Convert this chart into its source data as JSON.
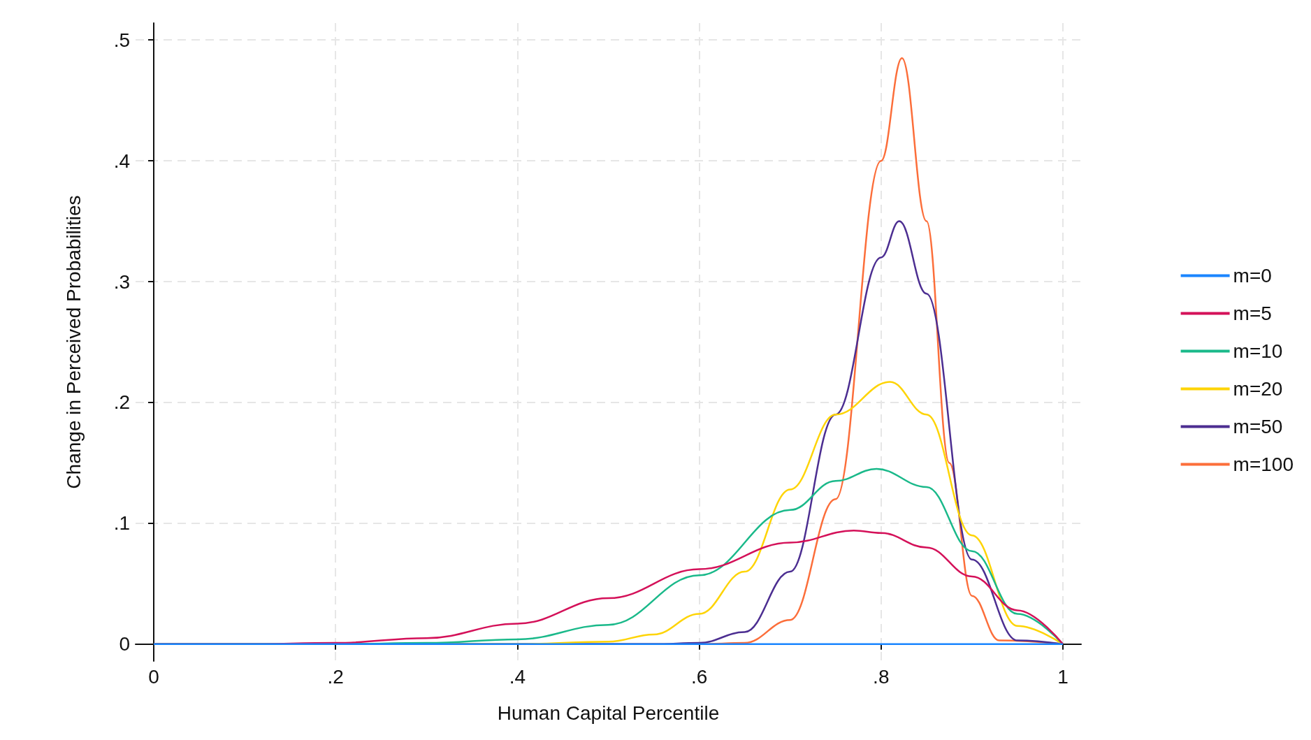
{
  "chart_data": {
    "type": "line",
    "xlabel": "Human Capital Percentile",
    "ylabel": "Change in Perceived Probabilities",
    "xlim": [
      -0.02,
      1.02
    ],
    "ylim": [
      -0.014,
      0.514
    ],
    "xticks": [
      0,
      {
        "value": 0.2,
        "label": ".2"
      },
      {
        "value": 0.4,
        "label": ".4"
      },
      {
        "value": 0.6,
        "label": ".6"
      },
      {
        "value": 0.8,
        "label": ".8"
      },
      1
    ],
    "yticks": [
      0,
      {
        "value": 0.1,
        "label": ".1"
      },
      {
        "value": 0.2,
        "label": ".2"
      },
      {
        "value": 0.3,
        "label": ".3"
      },
      {
        "value": 0.4,
        "label": ".4"
      },
      {
        "value": 0.5,
        "label": ".5"
      }
    ],
    "grid": true,
    "legend": "right",
    "marker": "none",
    "line_style": "solid",
    "series": [
      {
        "name": "m=0",
        "color": "#1a85ff",
        "x": [
          0,
          1
        ],
        "values": [
          0,
          0
        ]
      },
      {
        "name": "m=5",
        "color": "#d41159",
        "x": [
          0,
          0.1,
          0.2,
          0.3,
          0.4,
          0.5,
          0.6,
          0.7,
          0.77,
          0.8,
          0.85,
          0.9,
          0.95,
          1
        ],
        "values": [
          0,
          0,
          0.001,
          0.005,
          0.017,
          0.038,
          0.062,
          0.084,
          0.094,
          0.092,
          0.08,
          0.056,
          0.028,
          0
        ]
      },
      {
        "name": "m=10",
        "color": "#1ab98a",
        "x": [
          0,
          0.2,
          0.3,
          0.4,
          0.5,
          0.6,
          0.7,
          0.75,
          0.795,
          0.85,
          0.9,
          0.95,
          1
        ],
        "values": [
          0,
          0,
          0.001,
          0.004,
          0.016,
          0.057,
          0.111,
          0.135,
          0.145,
          0.13,
          0.077,
          0.025,
          0
        ]
      },
      {
        "name": "m=20",
        "color": "#fed405",
        "x": [
          0,
          0.4,
          0.5,
          0.55,
          0.6,
          0.65,
          0.7,
          0.75,
          0.81,
          0.85,
          0.9,
          0.95,
          1
        ],
        "values": [
          0,
          0,
          0.002,
          0.008,
          0.025,
          0.06,
          0.128,
          0.19,
          0.217,
          0.19,
          0.09,
          0.015,
          0
        ]
      },
      {
        "name": "m=50",
        "color": "#4c2e91",
        "x": [
          0,
          0.55,
          0.6,
          0.65,
          0.7,
          0.75,
          0.8,
          0.82,
          0.85,
          0.9,
          0.95,
          1
        ],
        "values": [
          0,
          0,
          0.001,
          0.01,
          0.06,
          0.19,
          0.32,
          0.35,
          0.29,
          0.07,
          0.003,
          0
        ]
      },
      {
        "name": "m=100",
        "color": "#fc6e3a",
        "x": [
          0,
          0.6,
          0.65,
          0.7,
          0.75,
          0.8,
          0.823,
          0.85,
          0.875,
          0.9,
          0.93,
          1
        ],
        "values": [
          0,
          0,
          0.001,
          0.02,
          0.12,
          0.4,
          0.485,
          0.35,
          0.15,
          0.04,
          0.003,
          0
        ]
      }
    ]
  }
}
